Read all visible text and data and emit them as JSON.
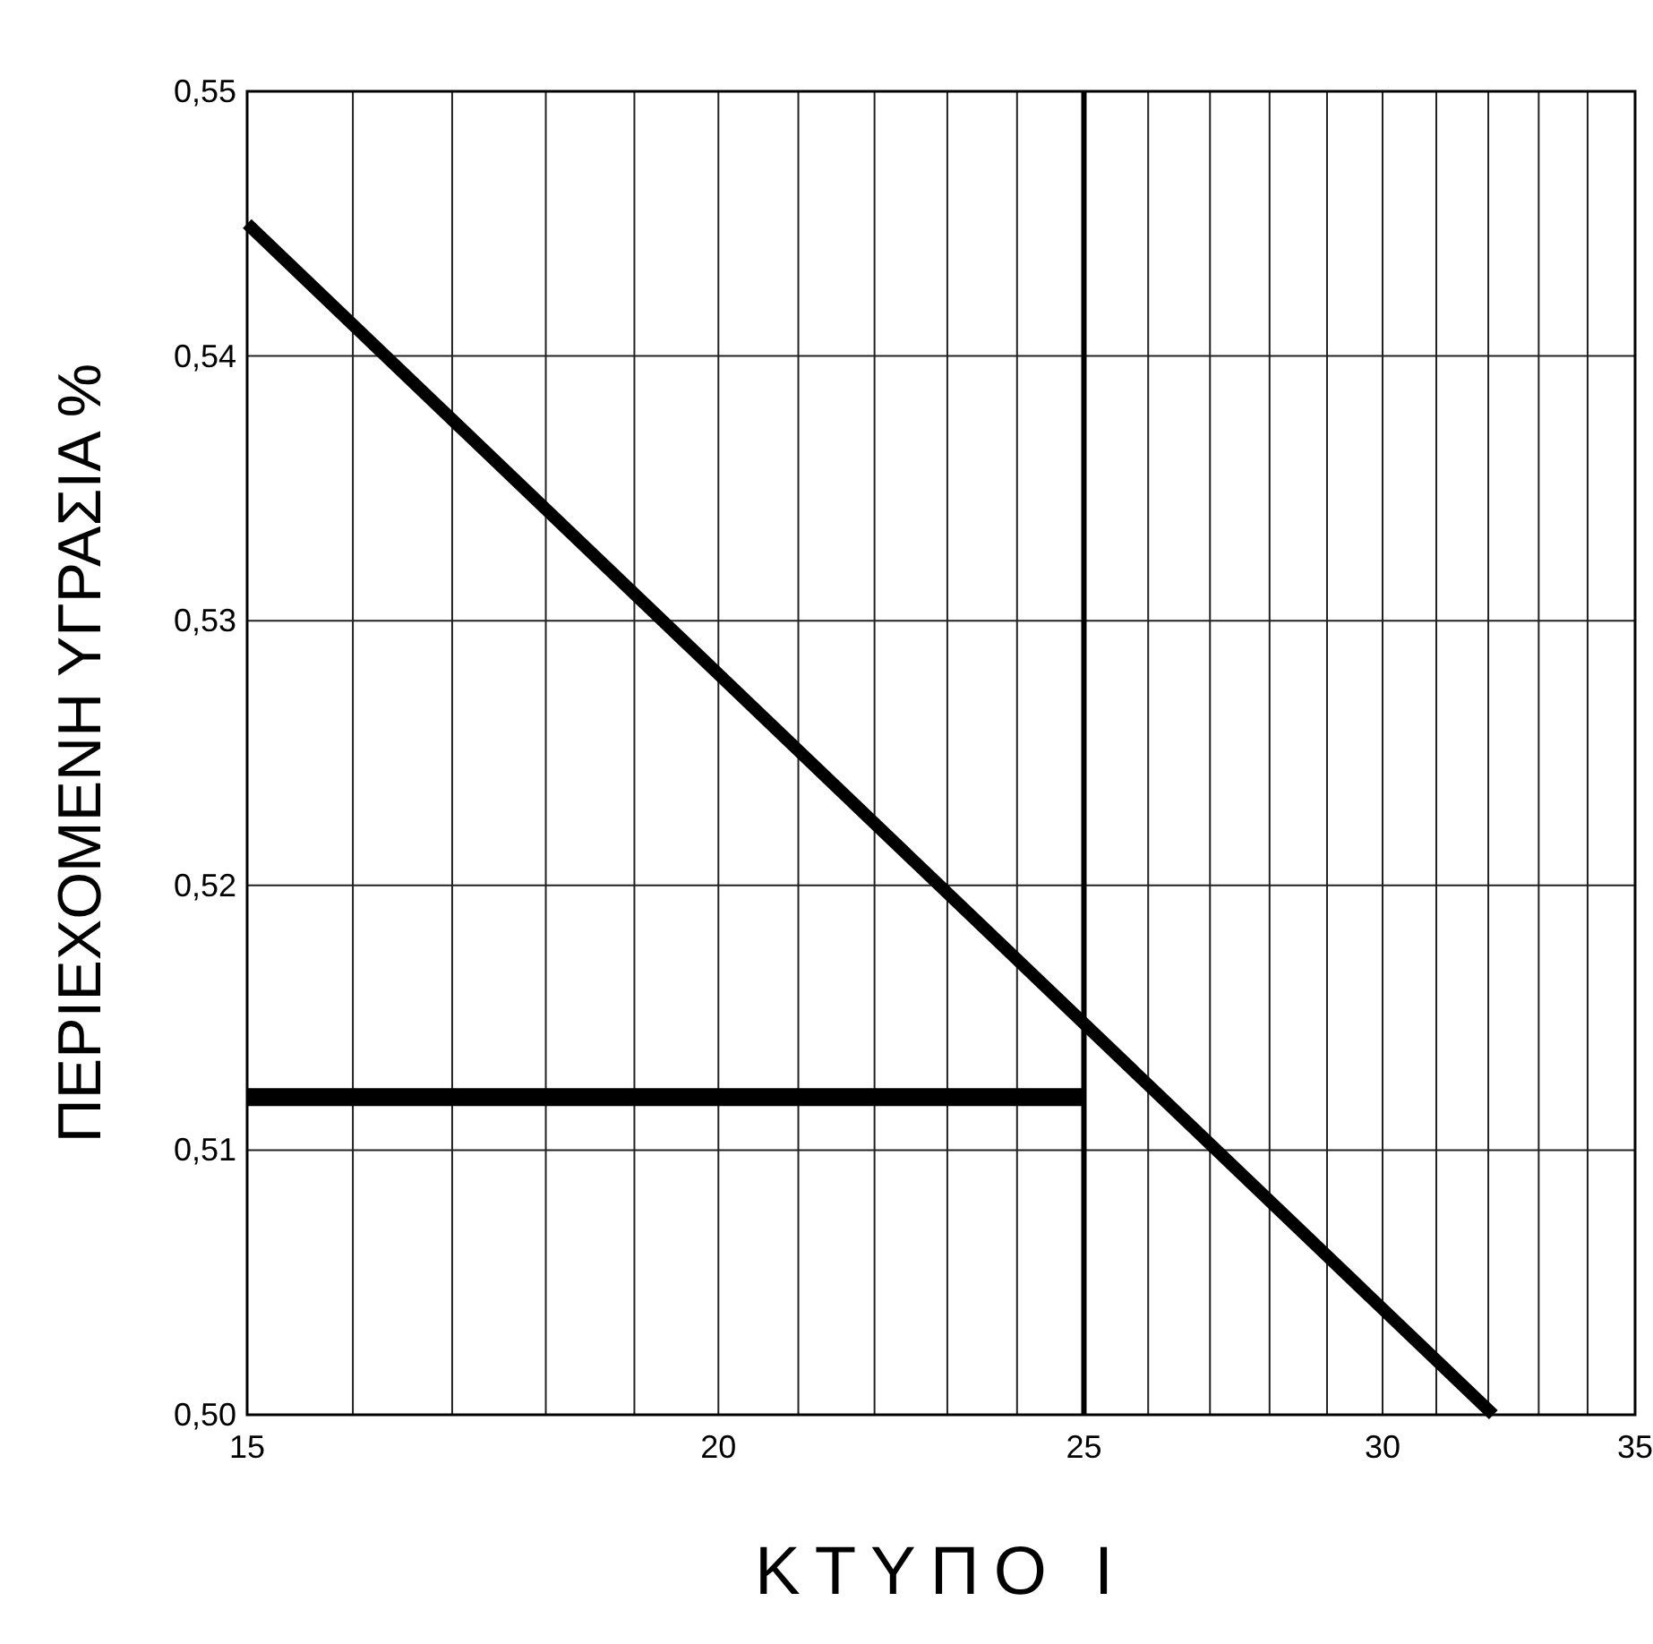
{
  "chart_data": {
    "type": "line",
    "xlabel": "ΚΤΥΠΟ Ι",
    "ylabel": "ΠΕΡΙΕΧΟΜΕΝΗ ΥΓΡΑΣΙΑ %",
    "log": "x",
    "grid": true,
    "marker": "none",
    "line_style": "solid",
    "xlim": [
      15,
      35
    ],
    "ylim": [
      0.5,
      0.55
    ],
    "xticks": [
      15,
      {
        "value": 16,
        "label": null
      },
      {
        "value": 17,
        "label": null
      },
      {
        "value": 18,
        "label": null
      },
      {
        "value": 19,
        "label": null
      },
      20,
      {
        "value": 21,
        "label": null
      },
      {
        "value": 22,
        "label": null
      },
      {
        "value": 23,
        "label": null
      },
      {
        "value": 24,
        "label": null
      },
      25,
      {
        "value": 26,
        "label": null
      },
      {
        "value": 27,
        "label": null
      },
      {
        "value": 28,
        "label": null
      },
      {
        "value": 29,
        "label": null
      },
      30,
      {
        "value": 31,
        "label": null
      },
      {
        "value": 32,
        "label": null
      },
      {
        "value": 33,
        "label": null
      },
      {
        "value": 34,
        "label": null
      },
      35
    ],
    "yticks": [
      {
        "value": 0.5,
        "label": "0,50"
      },
      {
        "value": 0.51,
        "label": "0,51"
      },
      {
        "value": 0.52,
        "label": "0,52"
      },
      {
        "value": 0.53,
        "label": "0,53"
      },
      {
        "value": 0.54,
        "label": "0,54"
      },
      {
        "value": 0.55,
        "label": "0,55"
      }
    ],
    "ref_lines": [
      {
        "axis": "x",
        "value": 25,
        "color": "#000000"
      }
    ],
    "series": [
      {
        "color": "#000000",
        "x": [
          15,
          32.1
        ],
        "values": [
          0.545,
          0.5
        ]
      },
      {
        "color": "#000000",
        "x": [
          15,
          25
        ],
        "values": [
          0.512,
          0.512
        ]
      }
    ]
  }
}
